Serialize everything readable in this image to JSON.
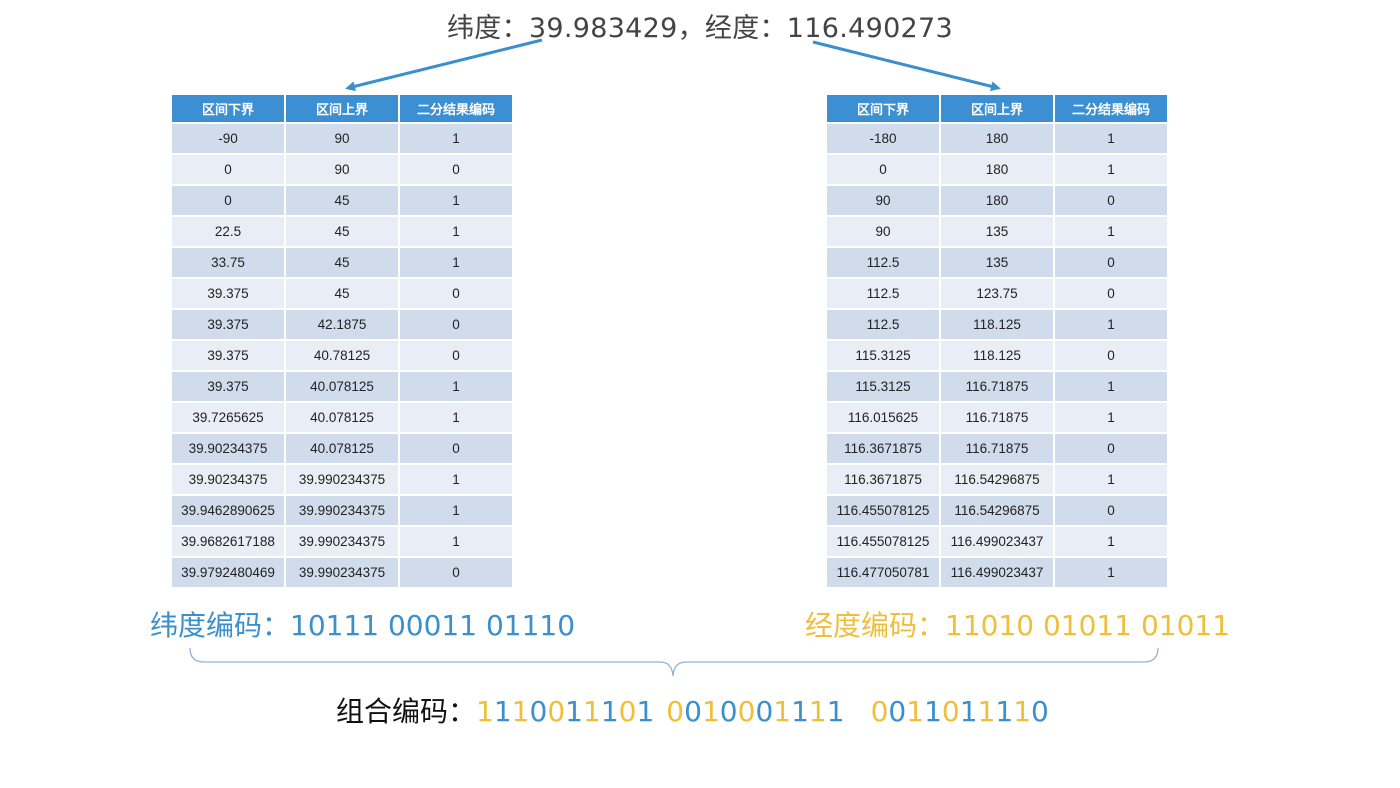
{
  "title": "纬度：39.983429，经度：116.490273",
  "headers": [
    "区间下界",
    "区间上界",
    "二分结果编码"
  ],
  "latitude_table": [
    [
      "-90",
      "90",
      "1"
    ],
    [
      "0",
      "90",
      "0"
    ],
    [
      "0",
      "45",
      "1"
    ],
    [
      "22.5",
      "45",
      "1"
    ],
    [
      "33.75",
      "45",
      "1"
    ],
    [
      "39.375",
      "45",
      "0"
    ],
    [
      "39.375",
      "42.1875",
      "0"
    ],
    [
      "39.375",
      "40.78125",
      "0"
    ],
    [
      "39.375",
      "40.078125",
      "1"
    ],
    [
      "39.7265625",
      "40.078125",
      "1"
    ],
    [
      "39.90234375",
      "40.078125",
      "0"
    ],
    [
      "39.90234375",
      "39.990234375",
      "1"
    ],
    [
      "39.9462890625",
      "39.990234375",
      "1"
    ],
    [
      "39.9682617188",
      "39.990234375",
      "1"
    ],
    [
      "39.9792480469",
      "39.990234375",
      "0"
    ]
  ],
  "longitude_table": [
    [
      "-180",
      "180",
      "1"
    ],
    [
      "0",
      "180",
      "1"
    ],
    [
      "90",
      "180",
      "0"
    ],
    [
      "90",
      "135",
      "1"
    ],
    [
      "112.5",
      "135",
      "0"
    ],
    [
      "112.5",
      "123.75",
      "0"
    ],
    [
      "112.5",
      "118.125",
      "1"
    ],
    [
      "115.3125",
      "118.125",
      "0"
    ],
    [
      "115.3125",
      "116.71875",
      "1"
    ],
    [
      "116.015625",
      "116.71875",
      "1"
    ],
    [
      "116.3671875",
      "116.71875",
      "0"
    ],
    [
      "116.3671875",
      "116.54296875",
      "1"
    ],
    [
      "116.455078125",
      "116.54296875",
      "0"
    ],
    [
      "116.455078125",
      "116.499023437",
      "1"
    ],
    [
      "116.477050781",
      "116.499023437",
      "1"
    ]
  ],
  "latitude_code": "纬度编码：10111 00011 01110",
  "longitude_code": "经度编码：11010 01011 01011",
  "combined_label": "组合编码：",
  "combined_groups": [
    [
      [
        "1",
        "gold"
      ],
      [
        "1",
        "blue"
      ],
      [
        "1",
        "gold"
      ],
      [
        "0",
        "blue"
      ],
      [
        "0",
        "gold"
      ],
      [
        "1",
        "blue"
      ],
      [
        "1",
        "gold"
      ],
      [
        "1",
        "blue"
      ],
      [
        "0",
        "gold"
      ],
      [
        "1",
        "blue"
      ]
    ],
    [
      [
        "0",
        "gold"
      ],
      [
        "0",
        "blue"
      ],
      [
        "1",
        "gold"
      ],
      [
        "0",
        "blue"
      ],
      [
        "0",
        "gold"
      ],
      [
        "0",
        "blue"
      ],
      [
        "1",
        "gold"
      ],
      [
        "1",
        "blue"
      ],
      [
        "1",
        "gold"
      ],
      [
        "1",
        "blue"
      ]
    ],
    [
      [
        "0",
        "gold"
      ],
      [
        "0",
        "blue"
      ],
      [
        "1",
        "gold"
      ],
      [
        "1",
        "blue"
      ],
      [
        "0",
        "gold"
      ],
      [
        "1",
        "blue"
      ],
      [
        "1",
        "gold"
      ],
      [
        "1",
        "blue"
      ],
      [
        "1",
        "gold"
      ],
      [
        "0",
        "blue"
      ]
    ]
  ],
  "colors": {
    "lat": "#3a8fcd",
    "lng": "#f0bf3a",
    "header": "#3c8fd2"
  }
}
